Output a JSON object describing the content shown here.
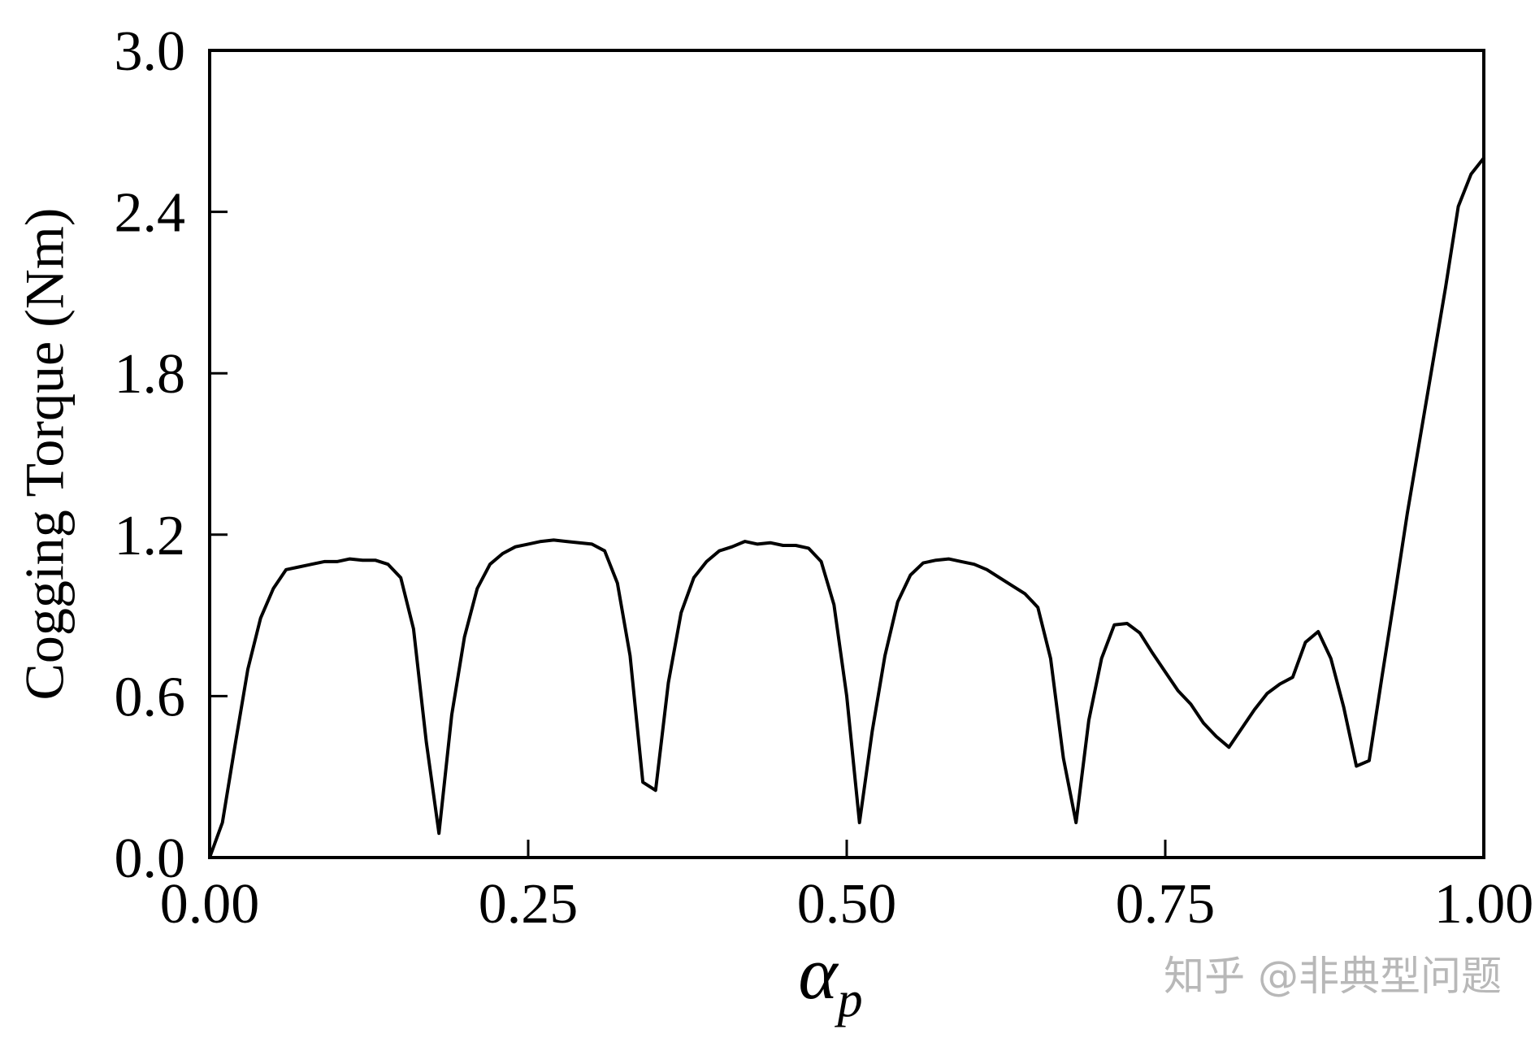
{
  "chart_data": {
    "type": "line",
    "title": "",
    "xlabel_symbol": "α",
    "xlabel_subscript": "p",
    "ylabel": "Cogging Torque (Nm)",
    "xlim": [
      0,
      1
    ],
    "ylim": [
      0,
      3
    ],
    "x_ticks": [
      0,
      0.25,
      0.5,
      0.75,
      1.0
    ],
    "x_tick_labels": [
      "0.00",
      "0.25",
      "0.50",
      "0.75",
      "1.00"
    ],
    "y_ticks": [
      0,
      0.6,
      1.2,
      1.8,
      2.4,
      3.0
    ],
    "y_tick_labels": [
      "0.0",
      "0.6",
      "1.2",
      "1.8",
      "2.4",
      "3.0"
    ],
    "grid": false,
    "line_color": "#000000",
    "series": [
      {
        "x": [
          0,
          0.01,
          0.02,
          0.03,
          0.04,
          0.05,
          0.06,
          0.07,
          0.08,
          0.09,
          0.1,
          0.11,
          0.12,
          0.13,
          0.14,
          0.15,
          0.16,
          0.17,
          0.18,
          0.19,
          0.2,
          0.21,
          0.22,
          0.23,
          0.24,
          0.25,
          0.26,
          0.27,
          0.28,
          0.29,
          0.3,
          0.31,
          0.32,
          0.33,
          0.34,
          0.35,
          0.36,
          0.37,
          0.38,
          0.39,
          0.4,
          0.41,
          0.42,
          0.43,
          0.44,
          0.45,
          0.46,
          0.47,
          0.48,
          0.49,
          0.5,
          0.51,
          0.52,
          0.53,
          0.54,
          0.55,
          0.56,
          0.57,
          0.58,
          0.59,
          0.6,
          0.61,
          0.62,
          0.63,
          0.64,
          0.65,
          0.66,
          0.67,
          0.68,
          0.69,
          0.7,
          0.71,
          0.72,
          0.73,
          0.74,
          0.75,
          0.76,
          0.77,
          0.78,
          0.79,
          0.8,
          0.81,
          0.82,
          0.83,
          0.84,
          0.85,
          0.86,
          0.87,
          0.88,
          0.89,
          0.9,
          0.91,
          0.92,
          0.93,
          0.94,
          0.95,
          0.96,
          0.97,
          0.98,
          0.99,
          1.0
        ],
        "y": [
          0.0,
          0.13,
          0.42,
          0.7,
          0.89,
          1.0,
          1.07,
          1.08,
          1.09,
          1.1,
          1.1,
          1.11,
          1.105,
          1.105,
          1.09,
          1.04,
          0.85,
          0.43,
          0.09,
          0.53,
          0.82,
          1.0,
          1.09,
          1.13,
          1.155,
          1.165,
          1.175,
          1.18,
          1.175,
          1.17,
          1.165,
          1.14,
          1.02,
          0.75,
          0.28,
          0.25,
          0.65,
          0.91,
          1.04,
          1.1,
          1.14,
          1.155,
          1.175,
          1.165,
          1.17,
          1.16,
          1.16,
          1.15,
          1.1,
          0.94,
          0.6,
          0.13,
          0.47,
          0.75,
          0.95,
          1.05,
          1.095,
          1.105,
          1.11,
          1.1,
          1.09,
          1.07,
          1.04,
          1.01,
          0.98,
          0.93,
          0.74,
          0.37,
          0.13,
          0.51,
          0.74,
          0.865,
          0.87,
          0.835,
          0.76,
          0.69,
          0.62,
          0.57,
          0.5,
          0.45,
          0.41,
          0.48,
          0.55,
          0.61,
          0.645,
          0.67,
          0.8,
          0.84,
          0.74,
          0.56,
          0.34,
          0.36,
          0.67,
          0.97,
          1.28,
          1.56,
          1.84,
          2.12,
          2.42,
          2.54,
          2.6
        ]
      }
    ]
  },
  "watermark": "知乎 @非典型问题"
}
